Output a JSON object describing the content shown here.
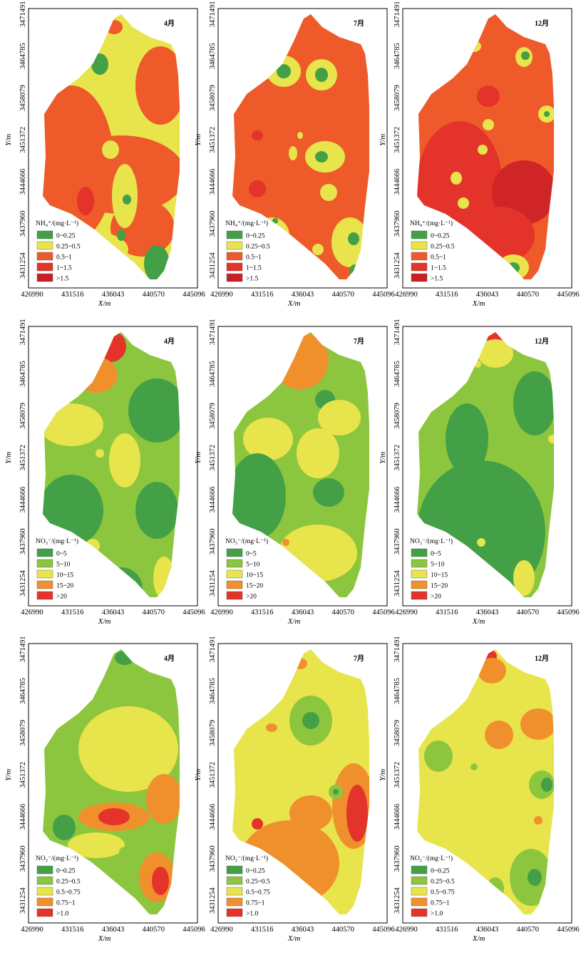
{
  "figure": {
    "x_axis_label": "X/m",
    "y_axis_label": "Y/m",
    "x_ticks": [
      "426990",
      "431516",
      "436043",
      "440570",
      "445096"
    ],
    "y_ticks": [
      "3471491",
      "3464785",
      "3458079",
      "3451372",
      "3444666",
      "3437960",
      "3431254"
    ]
  },
  "colors": {
    "green": "#43a047",
    "lightgreen": "#8cc63f",
    "yellow": "#e8e44c",
    "orange": "#f0902c",
    "orangered": "#ee5a2a",
    "red": "#e3332a",
    "darkred": "#d02526"
  },
  "rows": [
    {
      "species": "NH4+",
      "legend_title": "NH₄⁺/(mg·L⁻¹)",
      "legend_items": [
        {
          "label": "0~0.25",
          "color": "#43a047"
        },
        {
          "label": "0.25~0.5",
          "color": "#e8e44c"
        },
        {
          "label": "0.5~1",
          "color": "#ee5a2a"
        },
        {
          "label": "1~1.5",
          "color": "#e3332a"
        },
        {
          "label": ">1.5",
          "color": "#c91f25"
        }
      ],
      "panels": [
        {
          "month": "4月"
        },
        {
          "month": "7月"
        },
        {
          "month": "12月"
        }
      ]
    },
    {
      "species": "NO3-",
      "legend_title": "NO₃⁻/(mg·L⁻¹)",
      "legend_items": [
        {
          "label": "0~5",
          "color": "#43a047"
        },
        {
          "label": "5~10",
          "color": "#8cc63f"
        },
        {
          "label": "10~15",
          "color": "#e8e44c"
        },
        {
          "label": "15~20",
          "color": "#f0902c"
        },
        {
          "label": ">20",
          "color": "#e3332a"
        }
      ],
      "panels": [
        {
          "month": "4月"
        },
        {
          "month": "7月"
        },
        {
          "month": "12月"
        }
      ]
    },
    {
      "species": "NO2-",
      "legend_title": "NO₂⁻/(mg·L⁻¹)",
      "legend_items": [
        {
          "label": "0~0.25",
          "color": "#43a047"
        },
        {
          "label": "0.25~0.5",
          "color": "#8cc63f"
        },
        {
          "label": "0.5~0.75",
          "color": "#e8e44c"
        },
        {
          "label": "0.75~1",
          "color": "#f0902c"
        },
        {
          "label": ">1.0",
          "color": "#e3332a"
        }
      ],
      "panels": [
        {
          "month": "4月"
        },
        {
          "month": "7月"
        },
        {
          "month": "12月"
        }
      ]
    }
  ]
}
